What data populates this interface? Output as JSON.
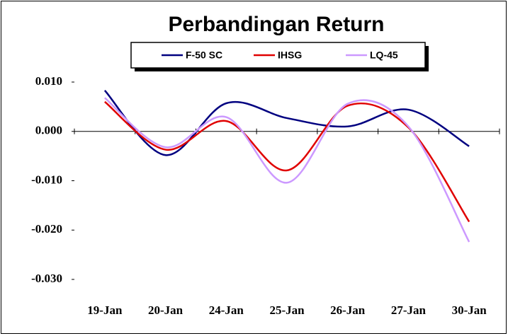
{
  "chart_data": {
    "type": "line",
    "title": "Perbandingan Return",
    "categories": [
      "19-Jan",
      "20-Jan",
      "24-Jan",
      "25-Jan",
      "26-Jan",
      "27-Jan",
      "30-Jan"
    ],
    "series": [
      {
        "name": "F-50 SC",
        "color": "#000080",
        "values": [
          0.0083,
          -0.0048,
          0.0057,
          0.0027,
          0.001,
          0.0044,
          -0.003
        ]
      },
      {
        "name": "IHSG",
        "color": "#e00000",
        "values": [
          0.006,
          -0.0037,
          0.0021,
          -0.0079,
          0.0052,
          0.0008,
          -0.0183
        ]
      },
      {
        "name": "LQ-45",
        "color": "#cc99ff",
        "values": [
          0.0068,
          -0.0032,
          0.0029,
          -0.0104,
          0.0056,
          0.001,
          -0.0224
        ]
      }
    ],
    "ylim": [
      -0.03,
      0.01
    ],
    "yticks": [
      {
        "value": 0.01,
        "label": "0.010"
      },
      {
        "value": 0,
        "label": "0.000"
      },
      {
        "value": -0.01,
        "label": "-0.010"
      },
      {
        "value": -0.02,
        "label": "-0.020"
      },
      {
        "value": -0.03,
        "label": "-0.030"
      }
    ],
    "smooth": true
  }
}
